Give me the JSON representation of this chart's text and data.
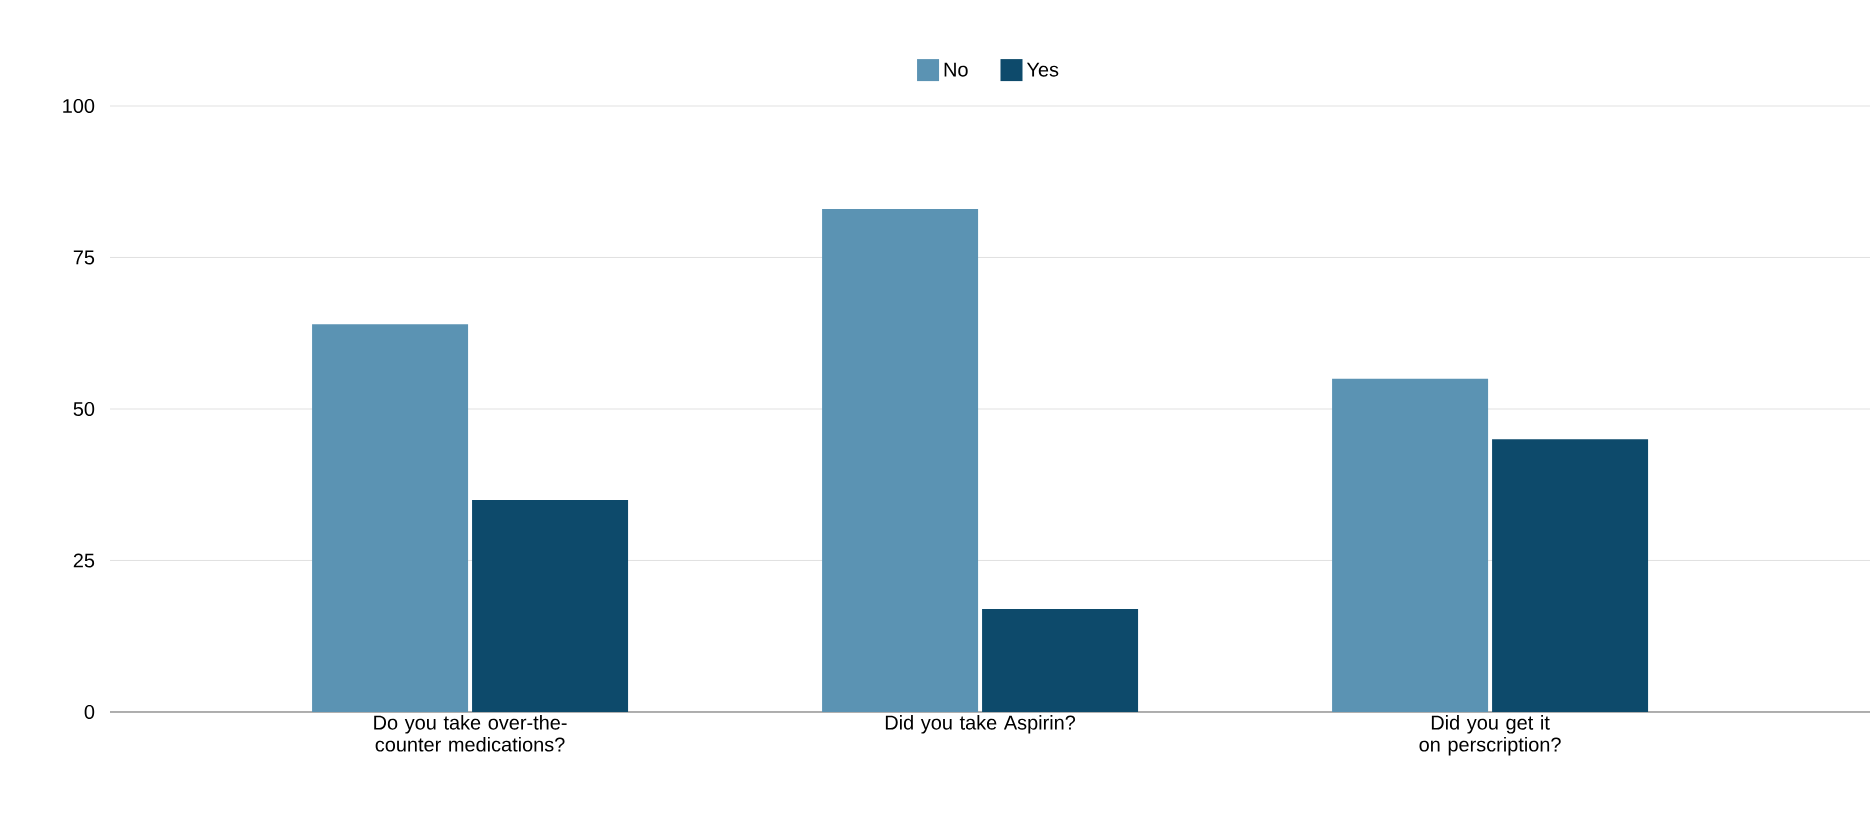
{
  "chart_data": {
    "type": "bar",
    "categories": [
      "Do you take over-the-counter medications?",
      "Did you take Aspirin?",
      "Did you get it on perscription?"
    ],
    "series": [
      {
        "name": "No",
        "color": "#5b93b3",
        "values": [
          64,
          83,
          55
        ]
      },
      {
        "name": "Yes",
        "color": "#0d4a6b",
        "values": [
          35,
          17,
          45
        ]
      }
    ],
    "ylim": [
      0,
      100
    ],
    "yticks": [
      0,
      25,
      50,
      75,
      100
    ],
    "grid": "y",
    "legend": "top"
  }
}
